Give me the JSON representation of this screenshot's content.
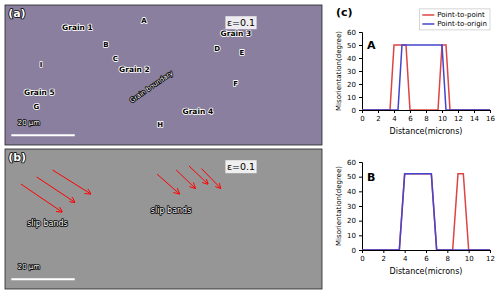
{
  "chart_data": [
    {
      "type": "image",
      "title": "(a)",
      "annotations": [
        "ε=0.1",
        "Grain 1",
        "Grain 2",
        "Grain 3",
        "Grain 4",
        "Grain 5",
        "A",
        "B",
        "C",
        "D",
        "E",
        "F",
        "G",
        "H",
        "I",
        "Grain boundary",
        "20 μm"
      ]
    },
    {
      "type": "image",
      "title": "(b)",
      "annotations": [
        "ε=0.1",
        "slip bands",
        "slip bands",
        "20 μm"
      ]
    },
    {
      "type": "line",
      "title": "A",
      "annotations": [
        "(c)"
      ],
      "xlabel": "Distance(microns)",
      "ylabel": "Misorientation(degree)",
      "xlim": [
        0,
        16
      ],
      "ylim": [
        0,
        60
      ],
      "xticks": [
        0,
        2,
        4,
        6,
        8,
        10,
        12,
        14,
        16
      ],
      "yticks": [
        0,
        10,
        20,
        30,
        40,
        50,
        60
      ],
      "legend": "upper right",
      "series": [
        {
          "name": "Point-to-point",
          "color": "#dd4444",
          "x": [
            0,
            3.5,
            4.0,
            4.5,
            5.5,
            6.0,
            6.5,
            9.5,
            10.0,
            10.5,
            11.0,
            11.5,
            12.0,
            16
          ],
          "values": [
            0,
            0,
            50,
            50,
            50,
            0,
            0,
            0,
            50,
            50,
            0,
            0,
            0,
            0
          ]
        },
        {
          "name": "Point-to-origin",
          "color": "#4444cc",
          "x": [
            0,
            4.5,
            5.0,
            5.5,
            9.5,
            10.0,
            10.5,
            11.0,
            16
          ],
          "values": [
            0,
            0,
            50,
            50,
            50,
            50,
            0,
            0,
            0
          ]
        }
      ]
    },
    {
      "type": "line",
      "title": "B",
      "xlabel": "Distance(microns)",
      "ylabel": "Misorientation(degree)",
      "xlim": [
        0,
        12
      ],
      "ylim": [
        0,
        60
      ],
      "xticks": [
        0,
        2,
        4,
        6,
        8,
        10,
        12
      ],
      "yticks": [
        0,
        10,
        20,
        30,
        40,
        50,
        60
      ],
      "series": [
        {
          "color": "#dd4444",
          "x": [
            0,
            3.5,
            4.0,
            6.5,
            7.0,
            8.5,
            9.0,
            9.5,
            10.0,
            12
          ],
          "values": [
            0,
            0,
            52,
            52,
            0,
            0,
            52,
            52,
            0,
            0
          ]
        },
        {
          "color": "#4444cc",
          "x": [
            0,
            3.5,
            4.0,
            6.5,
            7.0,
            8.5,
            9.0,
            12
          ],
          "values": [
            0,
            0,
            52,
            52,
            0,
            0,
            0,
            0
          ]
        }
      ]
    }
  ]
}
